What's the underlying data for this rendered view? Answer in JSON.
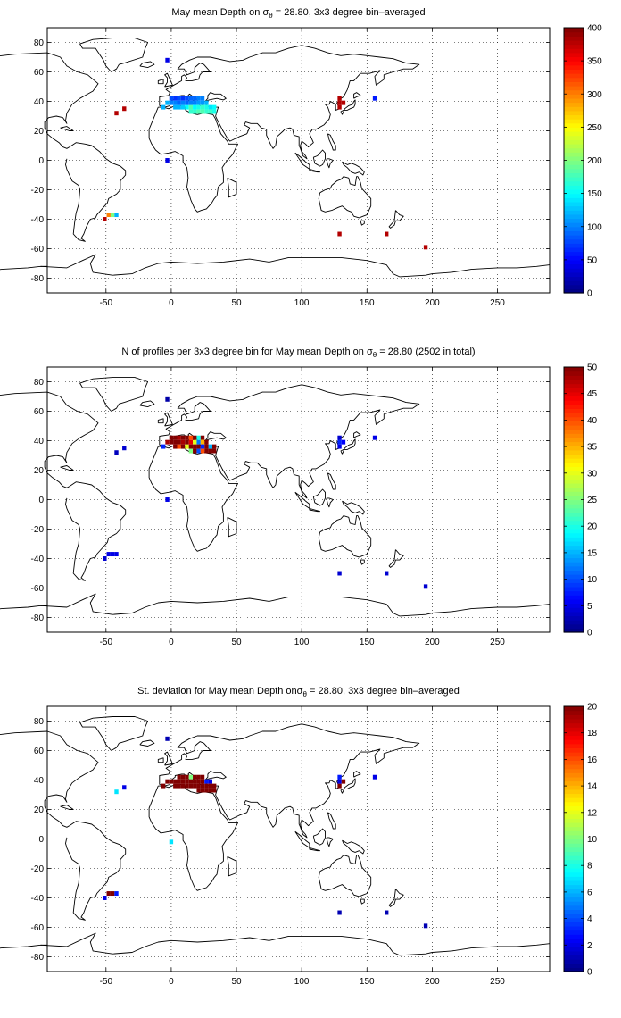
{
  "chart_data": [
    {
      "type": "heatmap",
      "title_main": "May mean Depth on ",
      "title_sigma": "σ",
      "title_sub": "θ",
      "title_rest": " = 28.80, 3x3 degree bin–averaged",
      "xlim": [
        -95,
        290
      ],
      "ylim": [
        -90,
        90
      ],
      "xticks": [
        -50,
        0,
        50,
        100,
        150,
        200,
        250
      ],
      "yticks": [
        -80,
        -60,
        -40,
        -20,
        0,
        20,
        40,
        60,
        80
      ],
      "grid": true,
      "colorbar": {
        "min": 0,
        "max": 400,
        "ticks": [
          0,
          50,
          100,
          150,
          200,
          250,
          300,
          350,
          400
        ],
        "colormap": "jet"
      },
      "cells": [
        [
          -3,
          68,
          40
        ],
        [
          -3,
          0,
          40
        ],
        [
          -42,
          32,
          380
        ],
        [
          -36,
          35,
          380
        ],
        [
          -51,
          -40,
          380
        ],
        [
          -48,
          -37,
          300
        ],
        [
          -45,
          -37,
          200
        ],
        [
          -42,
          -37,
          120
        ],
        [
          -6,
          36,
          120
        ],
        [
          -3,
          39,
          120
        ],
        [
          0,
          39,
          100
        ],
        [
          0,
          42,
          80
        ],
        [
          3,
          42,
          70
        ],
        [
          6,
          42,
          80
        ],
        [
          9,
          42,
          70
        ],
        [
          3,
          36,
          120
        ],
        [
          6,
          36,
          120
        ],
        [
          9,
          36,
          130
        ],
        [
          12,
          36,
          150
        ],
        [
          15,
          36,
          180
        ],
        [
          3,
          39,
          100
        ],
        [
          6,
          39,
          90
        ],
        [
          9,
          39,
          100
        ],
        [
          12,
          39,
          90
        ],
        [
          15,
          39,
          100
        ],
        [
          18,
          39,
          100
        ],
        [
          21,
          39,
          110
        ],
        [
          12,
          42,
          80
        ],
        [
          15,
          42,
          90
        ],
        [
          18,
          42,
          90
        ],
        [
          21,
          42,
          100
        ],
        [
          24,
          42,
          100
        ],
        [
          24,
          39,
          110
        ],
        [
          27,
          39,
          120
        ],
        [
          30,
          36,
          140
        ],
        [
          33,
          36,
          150
        ],
        [
          18,
          36,
          150
        ],
        [
          21,
          36,
          160
        ],
        [
          24,
          36,
          170
        ],
        [
          27,
          36,
          160
        ],
        [
          15,
          33,
          170
        ],
        [
          18,
          33,
          170
        ],
        [
          21,
          33,
          180
        ],
        [
          24,
          33,
          180
        ],
        [
          27,
          33,
          170
        ],
        [
          30,
          33,
          170
        ],
        [
          33,
          33,
          160
        ],
        [
          129,
          36,
          380
        ],
        [
          129,
          39,
          380
        ],
        [
          129,
          42,
          380
        ],
        [
          132,
          39,
          380
        ],
        [
          156,
          42,
          60
        ],
        [
          129,
          -50,
          380
        ],
        [
          165,
          -50,
          380
        ],
        [
          195,
          -59,
          380
        ]
      ]
    },
    {
      "type": "heatmap",
      "title_main": "N of profiles per 3x3 degree bin for May mean Depth on ",
      "title_sigma": "σ",
      "title_sub": "θ",
      "title_rest": " = 28.80 (2502 in total)",
      "xlim": [
        -95,
        290
      ],
      "ylim": [
        -90,
        90
      ],
      "xticks": [
        -50,
        0,
        50,
        100,
        150,
        200,
        250
      ],
      "yticks": [
        -80,
        -60,
        -40,
        -20,
        0,
        20,
        40,
        60,
        80
      ],
      "grid": true,
      "colorbar": {
        "min": 0,
        "max": 50,
        "ticks": [
          0,
          5,
          10,
          15,
          20,
          25,
          30,
          35,
          40,
          45,
          50
        ],
        "colormap": "jet"
      },
      "cells": [
        [
          -3,
          68,
          2
        ],
        [
          -3,
          0,
          5
        ],
        [
          -42,
          32,
          3
        ],
        [
          -36,
          35,
          4
        ],
        [
          -51,
          -40,
          4
        ],
        [
          -48,
          -37,
          5
        ],
        [
          -45,
          -37,
          5
        ],
        [
          -42,
          -37,
          5
        ],
        [
          -6,
          36,
          8
        ],
        [
          -3,
          39,
          48
        ],
        [
          0,
          39,
          50
        ],
        [
          0,
          42,
          50
        ],
        [
          3,
          42,
          50
        ],
        [
          6,
          42,
          48
        ],
        [
          9,
          42,
          50
        ],
        [
          3,
          36,
          50
        ],
        [
          6,
          36,
          40
        ],
        [
          9,
          36,
          50
        ],
        [
          12,
          36,
          30
        ],
        [
          15,
          36,
          50
        ],
        [
          3,
          39,
          50
        ],
        [
          6,
          39,
          50
        ],
        [
          9,
          39,
          48
        ],
        [
          12,
          39,
          50
        ],
        [
          15,
          39,
          45
        ],
        [
          18,
          39,
          30
        ],
        [
          21,
          39,
          12
        ],
        [
          12,
          42,
          50
        ],
        [
          15,
          42,
          40
        ],
        [
          18,
          42,
          50
        ],
        [
          21,
          42,
          20
        ],
        [
          24,
          42,
          50
        ],
        [
          24,
          39,
          35
        ],
        [
          27,
          39,
          50
        ],
        [
          30,
          36,
          15
        ],
        [
          33,
          36,
          50
        ],
        [
          18,
          36,
          50
        ],
        [
          21,
          36,
          50
        ],
        [
          24,
          36,
          8
        ],
        [
          27,
          36,
          50
        ],
        [
          15,
          33,
          25
        ],
        [
          18,
          33,
          50
        ],
        [
          21,
          33,
          10
        ],
        [
          24,
          33,
          40
        ],
        [
          27,
          33,
          50
        ],
        [
          30,
          33,
          50
        ],
        [
          33,
          33,
          50
        ],
        [
          129,
          36,
          5
        ],
        [
          129,
          39,
          8
        ],
        [
          129,
          42,
          4
        ],
        [
          132,
          39,
          6
        ],
        [
          156,
          42,
          5
        ],
        [
          129,
          -50,
          4
        ],
        [
          165,
          -50,
          4
        ],
        [
          195,
          -59,
          4
        ]
      ]
    },
    {
      "type": "heatmap",
      "title_main": "St. deviation for May mean Depth on",
      "title_sigma": "σ",
      "title_sub": "θ",
      "title_rest": " = 28.80, 3x3 degree bin–averaged",
      "xlim": [
        -95,
        290
      ],
      "ylim": [
        -90,
        90
      ],
      "xticks": [
        -50,
        0,
        50,
        100,
        150,
        200,
        250
      ],
      "yticks": [
        -80,
        -60,
        -40,
        -20,
        0,
        20,
        40,
        60,
        80
      ],
      "grid": true,
      "colorbar": {
        "min": 0,
        "max": 20,
        "ticks": [
          0,
          2,
          4,
          6,
          8,
          10,
          12,
          14,
          16,
          18,
          20
        ],
        "colormap": "jet"
      },
      "cells": [
        [
          -3,
          68,
          1
        ],
        [
          0,
          -2,
          7
        ],
        [
          -42,
          32,
          7
        ],
        [
          -36,
          35,
          2
        ],
        [
          -51,
          -40,
          2
        ],
        [
          -48,
          -37,
          20
        ],
        [
          -45,
          -37,
          20
        ],
        [
          -42,
          -37,
          3
        ],
        [
          -6,
          36,
          20
        ],
        [
          -3,
          39,
          20
        ],
        [
          0,
          39,
          20
        ],
        [
          3,
          39,
          20
        ],
        [
          6,
          42,
          20
        ],
        [
          9,
          42,
          20
        ],
        [
          12,
          42,
          20
        ],
        [
          15,
          42,
          10
        ],
        [
          18,
          42,
          20
        ],
        [
          21,
          42,
          20
        ],
        [
          24,
          42,
          20
        ],
        [
          3,
          36,
          20
        ],
        [
          6,
          36,
          20
        ],
        [
          9,
          36,
          20
        ],
        [
          12,
          36,
          20
        ],
        [
          15,
          36,
          20
        ],
        [
          6,
          39,
          20
        ],
        [
          9,
          39,
          20
        ],
        [
          12,
          39,
          20
        ],
        [
          15,
          39,
          20
        ],
        [
          18,
          39,
          20
        ],
        [
          21,
          39,
          20
        ],
        [
          24,
          39,
          20
        ],
        [
          27,
          39,
          3
        ],
        [
          30,
          39,
          2
        ],
        [
          18,
          36,
          20
        ],
        [
          21,
          36,
          20
        ],
        [
          24,
          36,
          20
        ],
        [
          27,
          36,
          20
        ],
        [
          30,
          36,
          20
        ],
        [
          33,
          36,
          20
        ],
        [
          21,
          33,
          20
        ],
        [
          24,
          33,
          20
        ],
        [
          27,
          33,
          20
        ],
        [
          30,
          33,
          20
        ],
        [
          33,
          33,
          20
        ],
        [
          129,
          36,
          20
        ],
        [
          129,
          39,
          2
        ],
        [
          129,
          42,
          3
        ],
        [
          132,
          39,
          20
        ],
        [
          156,
          42,
          2
        ],
        [
          129,
          -50,
          1
        ],
        [
          165,
          -50,
          1
        ],
        [
          195,
          -59,
          1
        ]
      ]
    }
  ]
}
